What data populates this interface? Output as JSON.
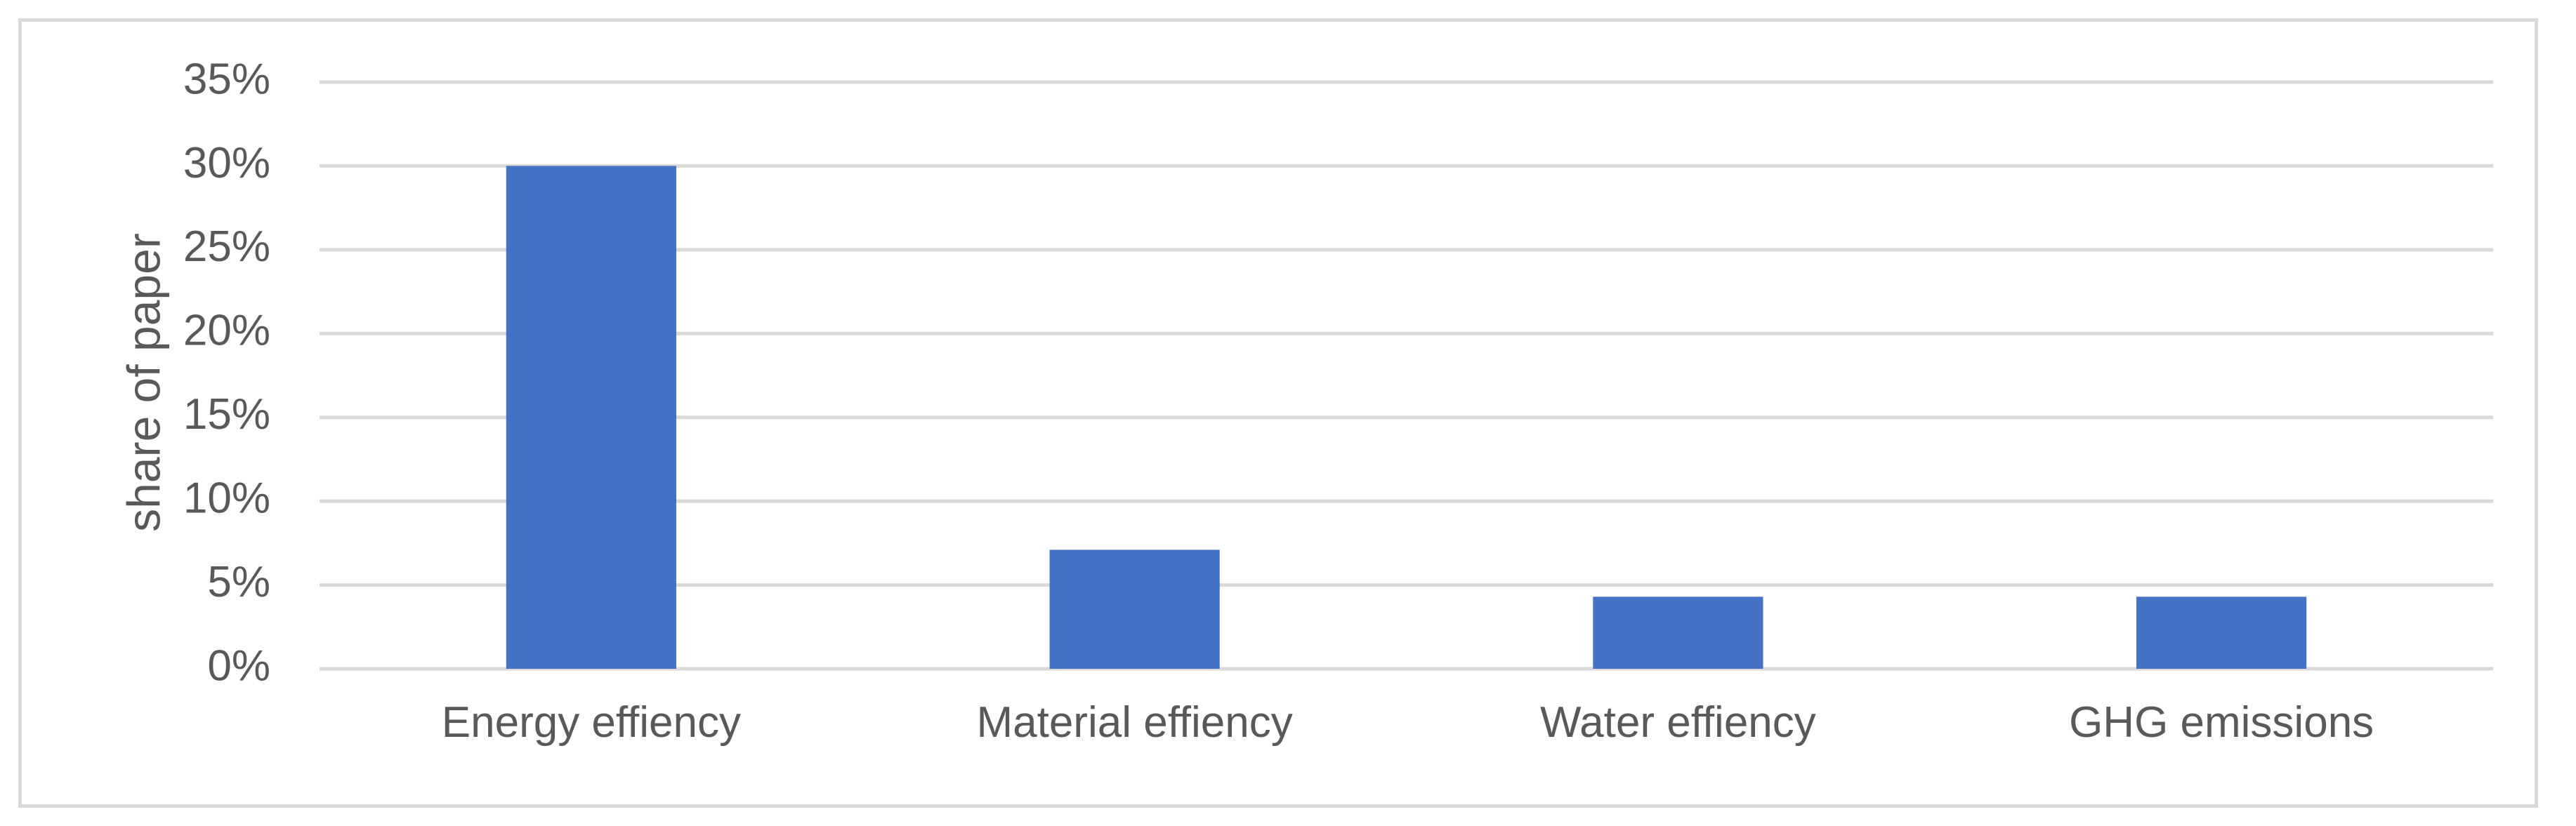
{
  "chart_data": {
    "type": "bar",
    "categories": [
      "Energy effiency",
      "Material effiency",
      "Water effiency",
      "GHG emissions"
    ],
    "values": [
      0.3,
      0.071,
      0.043,
      0.043
    ],
    "ylabel": "share  of paper",
    "ylim": [
      0,
      0.35
    ],
    "yticks": [
      0,
      0.05,
      0.1,
      0.15,
      0.2,
      0.25,
      0.3,
      0.35
    ],
    "ytick_labels": [
      "0%",
      "5%",
      "10%",
      "15%",
      "20%",
      "25%",
      "30%",
      "35%"
    ],
    "grid": true,
    "bar_color": "#4472C4",
    "grid_color": "#d9d9d9"
  }
}
